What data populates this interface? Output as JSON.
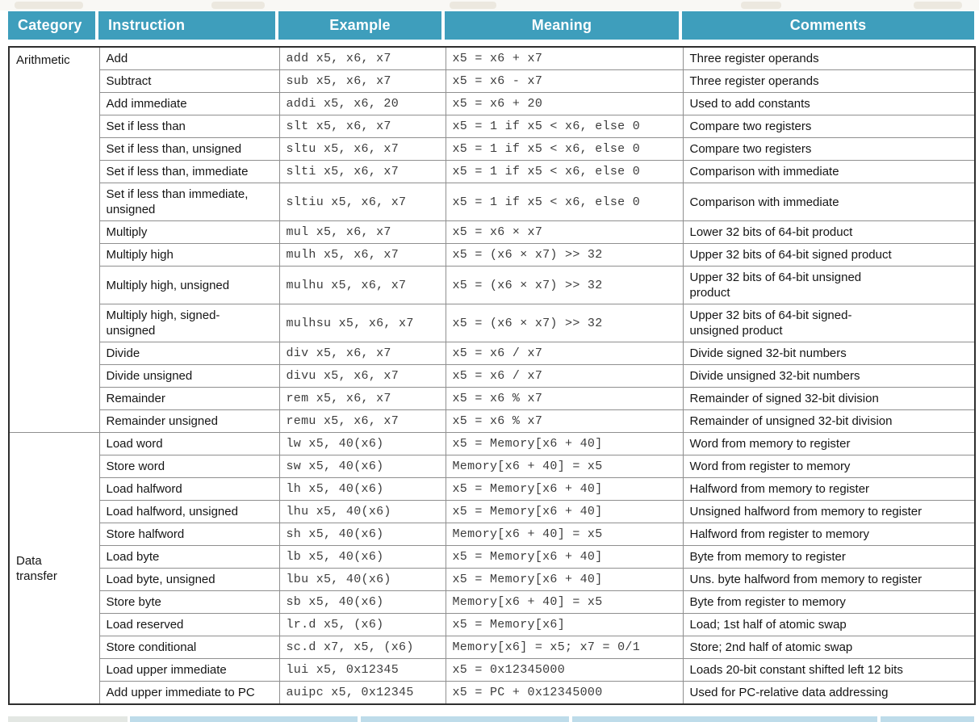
{
  "theme": {
    "header_bg": "#3e9ebc",
    "header_text": "#ffffff",
    "grid_line": "#8f8f8f",
    "outer_border": "#2e2e2e",
    "next_table_edge": "#bedcea"
  },
  "table": {
    "columns": [
      "Category",
      "Instruction",
      "Example",
      "Meaning",
      "Comments"
    ],
    "sections": [
      {
        "category": "Arithmetic",
        "rows": [
          {
            "instruction": "Add",
            "example": "add x5, x6, x7",
            "meaning": "x5 = x6 + x7",
            "comments": "Three register operands"
          },
          {
            "instruction": "Subtract",
            "example": "sub x5, x6, x7",
            "meaning": "x5 = x6 - x7",
            "comments": "Three register operands"
          },
          {
            "instruction": "Add immediate",
            "example": "addi x5, x6, 20",
            "meaning": "x5 = x6 + 20",
            "comments": "Used to add constants"
          },
          {
            "instruction": "Set if less than",
            "example": "slt x5, x6, x7",
            "meaning": "x5 = 1 if x5 < x6, else 0",
            "comments": "Compare two registers"
          },
          {
            "instruction": "Set if less than, unsigned",
            "example": "sltu x5, x6, x7",
            "meaning": "x5 = 1 if x5 < x6, else 0",
            "comments": "Compare two registers"
          },
          {
            "instruction": "Set if less than, immediate",
            "example": "slti x5, x6, x7",
            "meaning": "x5 = 1 if x5 < x6, else 0",
            "comments": "Comparison with immediate"
          },
          {
            "instruction": "Set if less than immediate,\nunsigned",
            "example": "sltiu x5, x6, x7",
            "meaning": "x5 = 1 if x5 < x6, else 0",
            "comments": "Comparison with immediate"
          },
          {
            "instruction": "Multiply",
            "example": "mul x5, x6, x7",
            "meaning": "x5 = x6 × x7",
            "comments": "Lower 32 bits of 64-bit product"
          },
          {
            "instruction": "Multiply high",
            "example": "mulh x5, x6, x7",
            "meaning": "x5 = (x6 × x7) >> 32",
            "comments": "Upper 32 bits of 64-bit signed product"
          },
          {
            "instruction": "Multiply high, unsigned",
            "example": "mulhu x5, x6, x7",
            "meaning": "x5 = (x6 × x7) >> 32",
            "comments": "Upper 32 bits of 64-bit unsigned\nproduct"
          },
          {
            "instruction": "Multiply high, signed-\nunsigned",
            "example": "mulhsu x5, x6, x7",
            "meaning": "x5 = (x6 × x7) >> 32",
            "comments": "Upper 32 bits of 64-bit signed-\nunsigned product"
          },
          {
            "instruction": "Divide",
            "example": "div x5, x6, x7",
            "meaning": "x5 = x6 / x7",
            "comments": "Divide signed 32-bit numbers"
          },
          {
            "instruction": "Divide unsigned",
            "example": "divu x5, x6, x7",
            "meaning": "x5 = x6 / x7",
            "comments": "Divide unsigned 32-bit numbers"
          },
          {
            "instruction": "Remainder",
            "example": "rem x5, x6, x7",
            "meaning": "x5 = x6 % x7",
            "comments": "Remainder of signed 32-bit division"
          },
          {
            "instruction": "Remainder unsigned",
            "example": "remu x5, x6, x7",
            "meaning": "x5 = x6 % x7",
            "comments": "Remainder of unsigned 32-bit division"
          }
        ]
      },
      {
        "category": "Data\ntransfer",
        "rows": [
          {
            "instruction": "Load word",
            "example": "lw x5, 40(x6)",
            "meaning": "x5 = Memory[x6 + 40]",
            "comments": "Word from memory to register"
          },
          {
            "instruction": "Store word",
            "example": "sw x5, 40(x6)",
            "meaning": "Memory[x6 + 40] = x5",
            "comments": "Word from register to memory"
          },
          {
            "instruction": "Load halfword",
            "example": "lh x5, 40(x6)",
            "meaning": "x5 = Memory[x6 + 40]",
            "comments": "Halfword from memory to register"
          },
          {
            "instruction": "Load halfword, unsigned",
            "example": "lhu x5, 40(x6)",
            "meaning": "x5 = Memory[x6 + 40]",
            "comments": "Unsigned halfword from memory to register"
          },
          {
            "instruction": "Store halfword",
            "example": "sh x5, 40(x6)",
            "meaning": "Memory[x6 + 40] = x5",
            "comments": "Halfword from register to memory"
          },
          {
            "instruction": "Load byte",
            "example": "lb x5, 40(x6)",
            "meaning": "x5 = Memory[x6 + 40]",
            "comments": "Byte from memory to register"
          },
          {
            "instruction": "Load byte, unsigned",
            "example": "lbu x5, 40(x6)",
            "meaning": "x5 = Memory[x6 + 40]",
            "comments": "Uns. byte halfword from memory to register"
          },
          {
            "instruction": "Store byte",
            "example": "sb x5, 40(x6)",
            "meaning": "Memory[x6 + 40] = x5",
            "comments": "Byte from register to memory"
          },
          {
            "instruction": "Load reserved",
            "example": "lr.d x5, (x6)",
            "meaning": "x5 = Memory[x6]",
            "comments": "Load; 1st half of atomic swap"
          },
          {
            "instruction": "Store conditional",
            "example": "sc.d x7, x5, (x6)",
            "meaning": "Memory[x6] = x5; x7 = 0/1",
            "comments": "Store; 2nd half of atomic swap"
          },
          {
            "instruction": "Load upper immediate",
            "example": "lui x5, 0x12345",
            "meaning": "x5 = 0x12345000",
            "comments": "Loads 20-bit constant shifted left 12 bits"
          },
          {
            "instruction": "Add upper immediate to PC",
            "example": "auipc x5, 0x12345",
            "meaning": "x5 = PC + 0x12345000",
            "comments": "Used for PC-relative data addressing"
          }
        ]
      }
    ]
  }
}
